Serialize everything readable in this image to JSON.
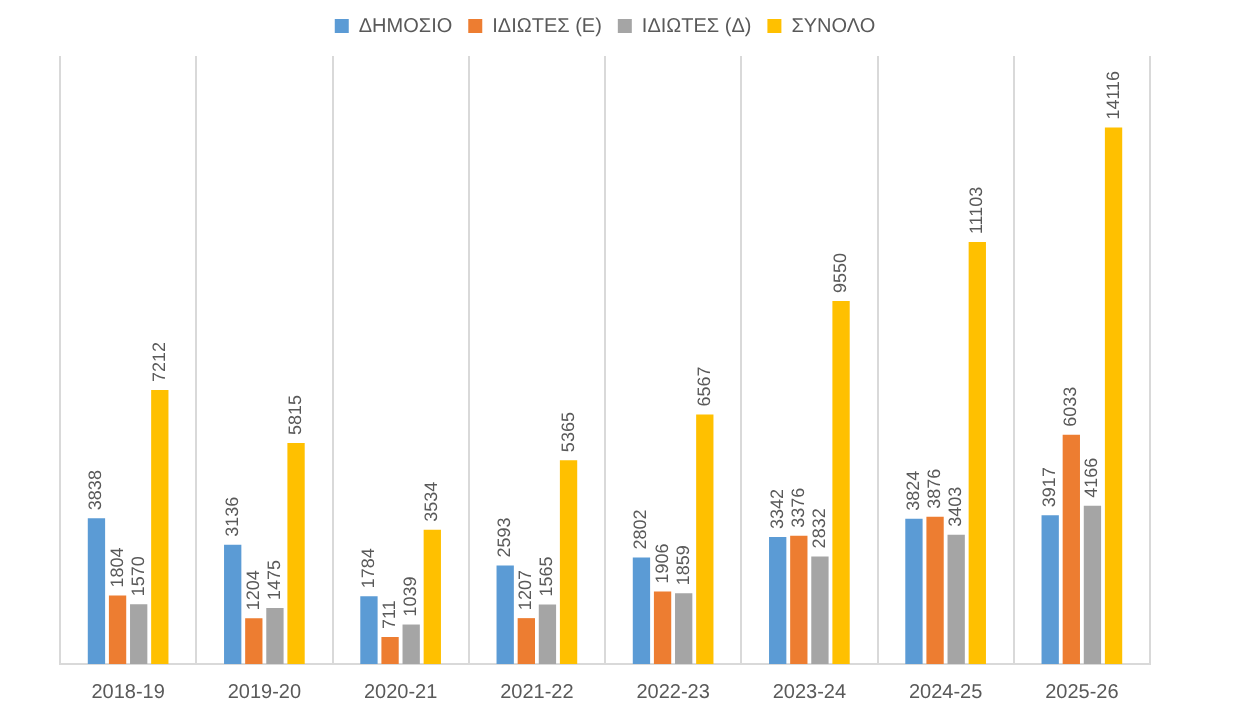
{
  "chart_data": {
    "type": "bar",
    "categories": [
      "2018-19",
      "2019-20",
      "2020-21",
      "2021-22",
      "2022-23",
      "2023-24",
      "2024-25",
      "2025-26"
    ],
    "series": [
      {
        "name": "ΔΗΜΟΣΙΟ",
        "color": "#5b9bd5",
        "values": [
          3838,
          3136,
          1784,
          2593,
          2802,
          3342,
          3824,
          3917
        ]
      },
      {
        "name": "ΙΔΙΩΤΕΣ (Ε)",
        "color": "#ed7d31",
        "values": [
          1804,
          1204,
          711,
          1207,
          1906,
          3376,
          3876,
          6033
        ]
      },
      {
        "name": "ΙΔΙΩΤΕΣ (Δ)",
        "color": "#a5a5a5",
        "values": [
          1570,
          1475,
          1039,
          1565,
          1859,
          2832,
          3403,
          4166
        ]
      },
      {
        "name": "ΣΥΝΟΛΟ",
        "color": "#ffc000",
        "values": [
          7212,
          5815,
          3534,
          5365,
          6567,
          9550,
          11103,
          14116
        ]
      }
    ],
    "ylim": [
      0,
      16000
    ],
    "tick_labels": "x",
    "grid": "x",
    "legend": "top",
    "data_labels": true
  }
}
